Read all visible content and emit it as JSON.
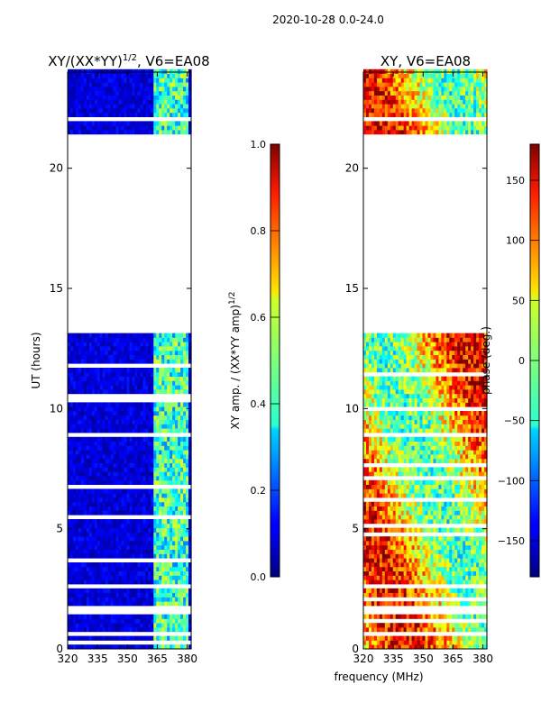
{
  "suptitle": "2020-10-28 0.0-24.0",
  "xlabel": "frequency (MHz)",
  "chart_data": [
    {
      "type": "heatmap",
      "title": "XY/(XX*YY)",
      "title_exponent": "1/2",
      "title_suffix": ", V6=EA08",
      "xlabel": "",
      "ylabel": "UT (hours)",
      "xlim": [
        320,
        382
      ],
      "ylim": [
        0,
        24
      ],
      "xticks": [
        "320",
        "335",
        "350",
        "365",
        "380"
      ],
      "yticks": [
        "0",
        "5",
        "10",
        "15",
        "20"
      ],
      "data_gap_hours": [
        13.0,
        21.4
      ],
      "bright_band_mhz": [
        363,
        380
      ],
      "colorbar": {
        "label": "XY amp. / (XX*YY amp)",
        "label_exponent": "1/2",
        "range": [
          0.0,
          1.0
        ],
        "ticks": [
          "0.0",
          "0.2",
          "0.4",
          "0.6",
          "0.8",
          "1.0"
        ]
      }
    },
    {
      "type": "heatmap",
      "title": "XY, V6=EA08",
      "xlabel": "frequency (MHz)",
      "ylabel": "",
      "xlim": [
        320,
        382
      ],
      "ylim": [
        0,
        24
      ],
      "xticks": [
        "320",
        "335",
        "350",
        "365",
        "380"
      ],
      "yticks": [
        "0",
        "5",
        "10",
        "15",
        "20"
      ],
      "data_gap_hours": [
        13.0,
        21.4
      ],
      "colorbar": {
        "label": "phase (deg.)",
        "range": [
          -180,
          180
        ],
        "ticks": [
          "−150",
          "−100",
          "−50",
          "0",
          "50",
          "100",
          "150"
        ]
      }
    }
  ]
}
